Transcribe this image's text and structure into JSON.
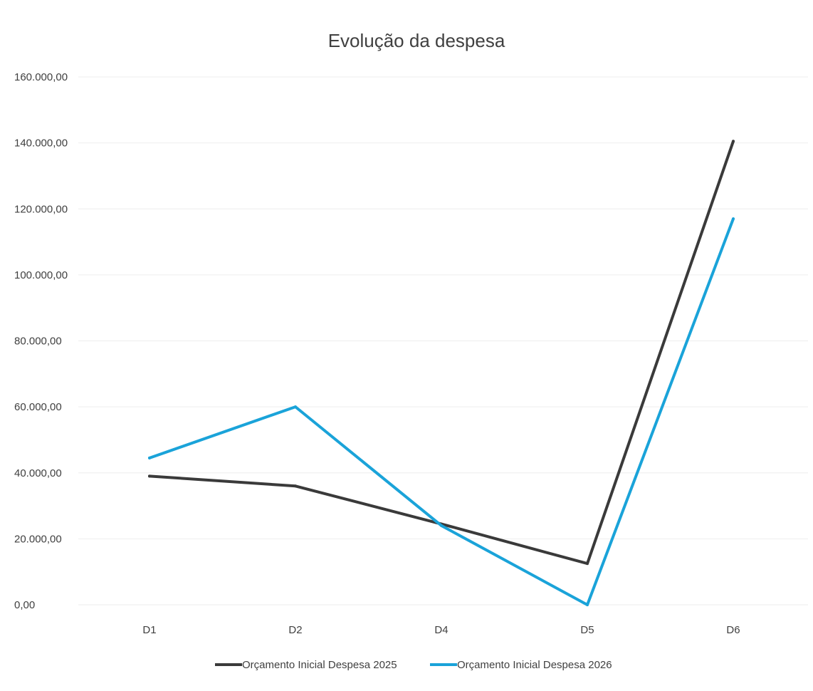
{
  "chart_data": {
    "type": "line",
    "title": "Evolução da despesa",
    "xlabel": "",
    "ylabel": "",
    "categories": [
      "D1",
      "D2",
      "D4",
      "D5",
      "D6"
    ],
    "ylim": [
      0,
      160000
    ],
    "y_ticks": [
      0,
      20000,
      40000,
      60000,
      80000,
      100000,
      120000,
      140000,
      160000
    ],
    "y_tick_labels": [
      "0,00",
      "20.000,00",
      "40.000,00",
      "60.000,00",
      "80.000,00",
      "100.000,00",
      "120.000,00",
      "140.000,00",
      "160.000,00"
    ],
    "grid": true,
    "legend_position": "bottom",
    "series": [
      {
        "name": "Orçamento Inicial Despesa 2025",
        "color": "#3a3a3a",
        "values": [
          39000,
          36000,
          24500,
          12500,
          140500
        ]
      },
      {
        "name": "Orçamento Inicial Despesa 2026",
        "color": "#1aa3d9",
        "values": [
          44500,
          60000,
          24000,
          0,
          117000
        ]
      }
    ]
  }
}
